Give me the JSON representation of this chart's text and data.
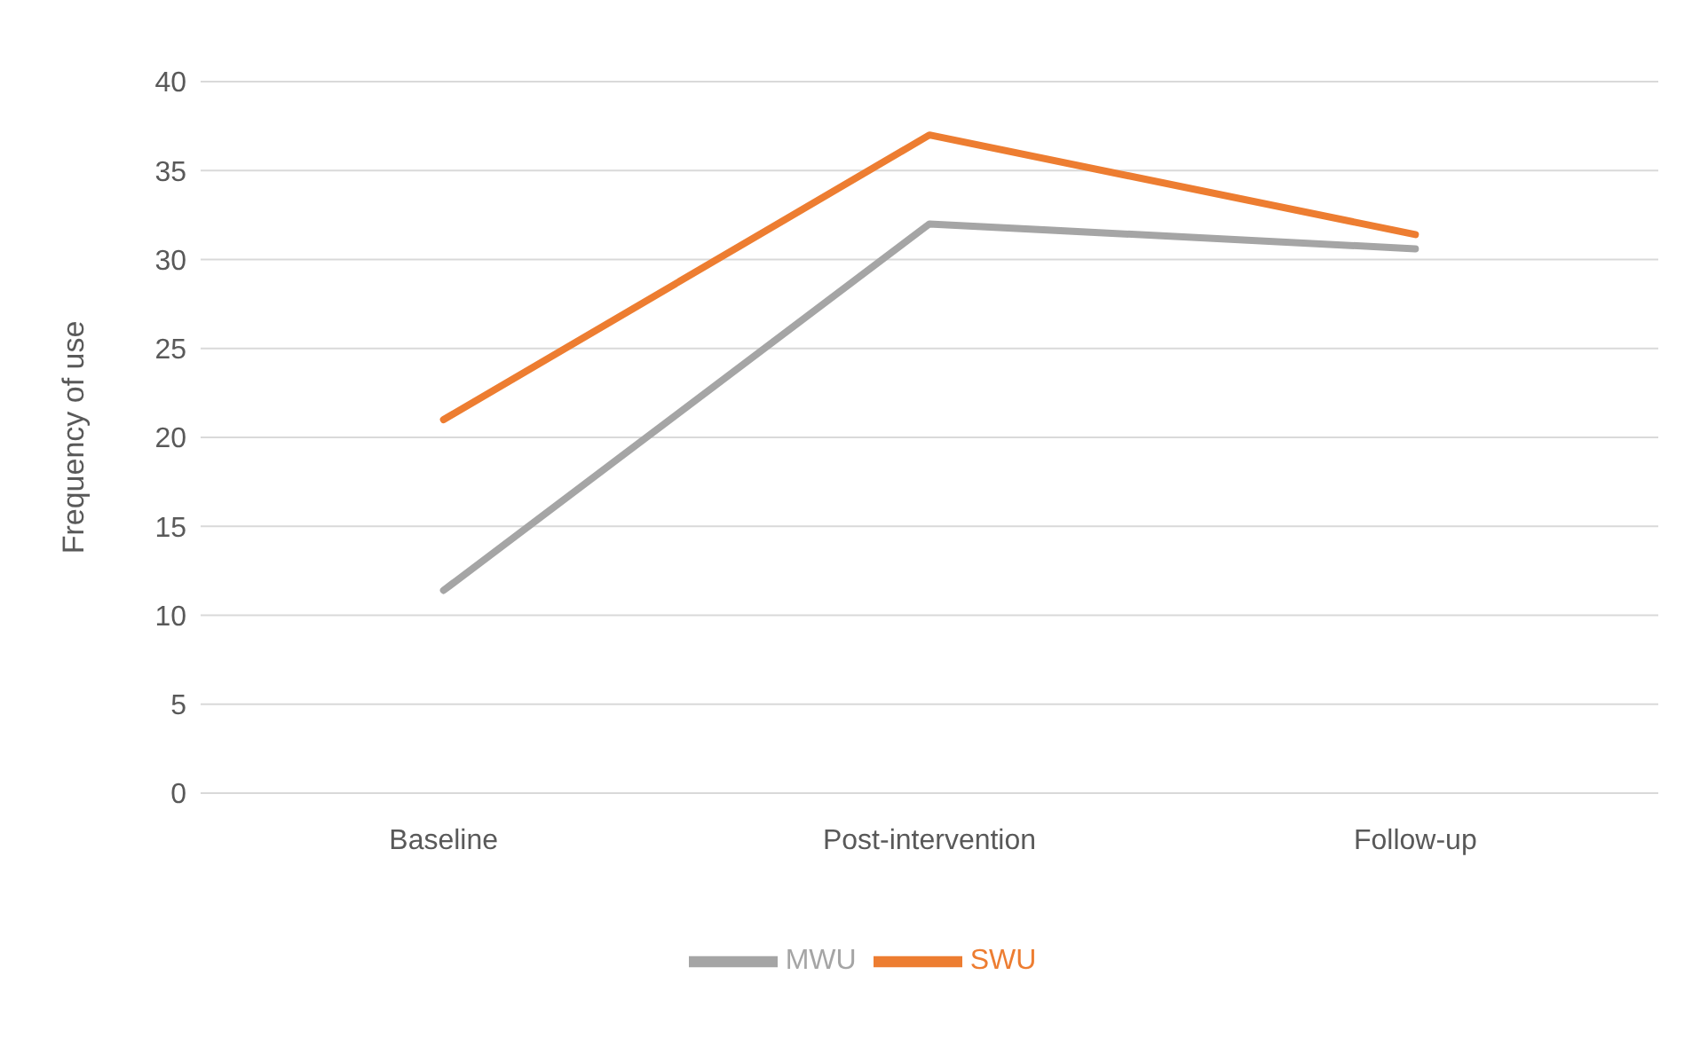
{
  "chart_data": {
    "type": "line",
    "ylabel": "Frequency of use",
    "categories": [
      "Baseline",
      "Post-intervention",
      "Follow-up"
    ],
    "series": [
      {
        "name": "SWU",
        "color": "#ed7d31",
        "values": [
          21,
          37,
          31.4
        ]
      },
      {
        "name": "MWU",
        "color": "#a5a5a5",
        "values": [
          11.4,
          32,
          30.6
        ]
      }
    ],
    "ylim": [
      0,
      40
    ],
    "yticks": [
      0,
      5,
      10,
      15,
      20,
      25,
      30,
      35,
      40
    ],
    "grid": "y",
    "legend": "bottom",
    "marker": "none",
    "line_style": "solid"
  }
}
